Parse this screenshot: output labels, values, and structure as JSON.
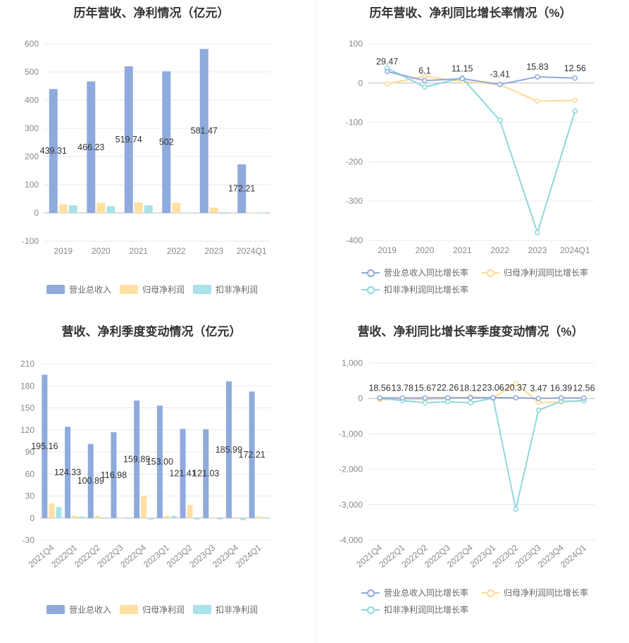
{
  "colors": {
    "revenue": "#8faadc",
    "net": "#ffe0a3",
    "deducted": "#a9e2e8",
    "revenue_line": "#8faadc",
    "net_line": "#ffd991",
    "deducted_line": "#8ed8de"
  },
  "legends": {
    "bars": [
      "营业总收入",
      "归母净利润",
      "扣非净利润"
    ],
    "lines": [
      "营业总收入同比增长率",
      "归母净利润同比增长率",
      "扣非净利润同比增长率"
    ]
  },
  "chart_data": [
    {
      "id": "c1",
      "type": "bar",
      "title": "历年营收、净利情况（亿元）",
      "categories": [
        "2019",
        "2020",
        "2021",
        "2022",
        "2023",
        "2024Q1"
      ],
      "ylim": [
        -100,
        600
      ],
      "yticks": [
        -100,
        0,
        100,
        200,
        300,
        400,
        500,
        600
      ],
      "ytick_labels": [
        "-100",
        "0",
        "100",
        "200",
        "300",
        "400",
        "500",
        "600"
      ],
      "series": [
        {
          "name": "营业总收入",
          "values": [
            439.31,
            466.23,
            519.74,
            502,
            581.47,
            172.21
          ]
        },
        {
          "name": "归母净利润",
          "values": [
            30,
            36,
            37,
            36,
            19,
            2
          ]
        },
        {
          "name": "扣非净利润",
          "values": [
            27,
            24,
            27,
            1,
            -3,
            1
          ]
        }
      ],
      "data_labels": [
        "439.31",
        "466.23",
        "519.74",
        "502",
        "581.47",
        "172.21"
      ],
      "legend_position": "bottom"
    },
    {
      "id": "c2",
      "type": "line",
      "title": "历年营收、净利同比增长率情况（%）",
      "categories": [
        "2019",
        "2020",
        "2021",
        "2022",
        "2023",
        "2024Q1"
      ],
      "ylim": [
        -400,
        100
      ],
      "yticks": [
        -400,
        -300,
        -200,
        -100,
        0,
        100
      ],
      "ytick_labels": [
        "-400",
        "-300",
        "-200",
        "-100",
        "0",
        "100"
      ],
      "series": [
        {
          "name": "营业总收入同比增长率",
          "values": [
            29.47,
            6.1,
            11.15,
            -3.41,
            15.83,
            12.56
          ]
        },
        {
          "name": "归母净利润同比增长率",
          "values": [
            -2,
            17,
            4,
            -4,
            -46,
            -44
          ]
        },
        {
          "name": "扣非净利润同比增长率",
          "values": [
            38,
            -10,
            13,
            -95,
            -380,
            -71
          ]
        }
      ],
      "data_labels": [
        "29.47",
        "6.1",
        "11.15",
        "-3.41",
        "15.83",
        "12.56"
      ],
      "legend_position": "bottom"
    },
    {
      "id": "c3",
      "type": "bar",
      "title": "营收、净利季度变动情况（亿元）",
      "categories": [
        "2021Q4",
        "2022Q1",
        "2022Q2",
        "2022Q3",
        "2022Q4",
        "2023Q1",
        "2023Q2",
        "2023Q3",
        "2023Q4",
        "2024Q1"
      ],
      "ylim": [
        -30,
        210
      ],
      "yticks": [
        -30,
        0,
        30,
        60,
        90,
        120,
        150,
        180,
        210
      ],
      "ytick_labels": [
        "-30",
        "0",
        "30",
        "60",
        "90",
        "120",
        "150",
        "180",
        "210"
      ],
      "series": [
        {
          "name": "营业总收入",
          "values": [
            195.16,
            124.33,
            100.89,
            116.98,
            159.89,
            153.0,
            121.41,
            121.03,
            185.99,
            172.21
          ]
        },
        {
          "name": "归母净利润",
          "values": [
            20,
            3,
            3,
            1,
            30,
            3,
            18,
            1,
            1,
            2
          ]
        },
        {
          "name": "扣非净利润",
          "values": [
            15,
            2,
            0,
            0,
            -2,
            3,
            -2,
            -2,
            -3,
            0
          ]
        }
      ],
      "data_labels": [
        "195.16",
        "124.33",
        "100.89",
        "116.98",
        "159.89",
        "153.00",
        "121.41",
        "121.03",
        "185.99",
        "172.21"
      ],
      "legend_position": "bottom"
    },
    {
      "id": "c4",
      "type": "line",
      "title": "营收、净利同比增长率季度变动情况（%）",
      "categories": [
        "2021Q4",
        "2022Q1",
        "2022Q2",
        "2022Q3",
        "2022Q4",
        "2023Q1",
        "2023Q2",
        "2023Q3",
        "2023Q4",
        "2024Q1"
      ],
      "ylim": [
        -4000,
        1000
      ],
      "yticks": [
        -4000,
        -3000,
        -2000,
        -1000,
        0,
        1000
      ],
      "ytick_labels": [
        "-4,000",
        "-3,000",
        "-2,000",
        "-1,000",
        "0",
        "1,000"
      ],
      "series": [
        {
          "name": "营业总收入同比增长率",
          "values": [
            18.56,
            13.78,
            15.67,
            22.26,
            18.12,
            23.06,
            20.37,
            3.47,
            16.39,
            12.56
          ]
        },
        {
          "name": "归母净利润同比增长率",
          "values": [
            -30,
            -20,
            -30,
            -10,
            40,
            20,
            420,
            -110,
            -100,
            -50
          ]
        },
        {
          "name": "扣非净利润同比增长率",
          "values": [
            10,
            -60,
            -120,
            -90,
            -120,
            10,
            -3130,
            -330,
            -80,
            -70
          ]
        }
      ],
      "data_labels": [
        "18.56",
        "13.78",
        "15.67",
        "22.26",
        "18.12",
        "23.06",
        "20.37",
        "3.47",
        "16.39",
        "12.56"
      ],
      "legend_position": "bottom"
    }
  ]
}
